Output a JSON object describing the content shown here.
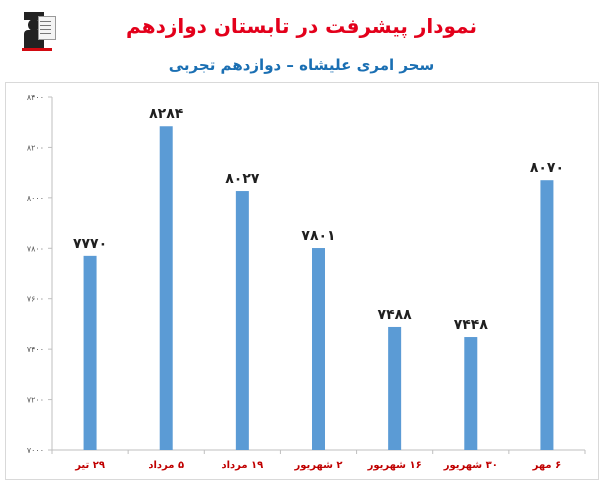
{
  "header": {
    "title": "نمودار پیشرفت در تابستان دوازدهم",
    "subtitle": "سحر امری علیشاه – دوازدهم تجربی"
  },
  "logo": {
    "icon": "teacher-logo-icon",
    "accent": "#d20a11"
  },
  "colors": {
    "bar": "#5b9bd5",
    "title": "#e3001b",
    "subtitle": "#1a6fb3",
    "xlabel": "#c00000"
  },
  "chart_data": {
    "type": "bar",
    "categories": [
      "۲۹ تیر",
      "۵ مرداد",
      "۱۹ مرداد",
      "۲ شهریور",
      "۱۶ شهریور",
      "۳۰ شهریور",
      "۶ مهر"
    ],
    "values": [
      7770,
      8284,
      8027,
      7801,
      7488,
      7448,
      8070
    ],
    "value_labels": [
      "۷۷۷۰",
      "۸۲۸۴",
      "۸۰۲۷",
      "۷۸۰۱",
      "۷۴۸۸",
      "۷۴۴۸",
      "۸۰۷۰"
    ],
    "ylim": [
      7000,
      8400
    ],
    "yticks": [
      7000,
      7200,
      7400,
      7600,
      7800,
      8000,
      8200,
      8400
    ],
    "ytick_labels": [
      "۷۰۰۰",
      "۷۲۰۰",
      "۷۴۰۰",
      "۷۶۰۰",
      "۷۸۰۰",
      "۸۰۰۰",
      "۸۲۰۰",
      "۸۴۰۰"
    ],
    "grid": false,
    "legend": "none"
  }
}
